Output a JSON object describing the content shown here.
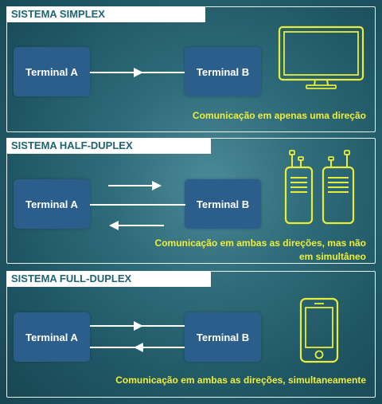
{
  "panels": {
    "simplex": {
      "title": "SISTEMA SIMPLEX",
      "terminal_a": "Terminal A",
      "terminal_b": "Terminal B",
      "caption": "Comunicação em apenas uma direção",
      "device_icon": "monitor-icon"
    },
    "half_duplex": {
      "title": "SISTEMA HALF-DUPLEX",
      "terminal_a": "Terminal A",
      "terminal_b": "Terminal B",
      "caption_line1": "Comunicação em ambas as direções, mas não",
      "caption_line2": "em simultâneo",
      "device_icon": "walkie-talkie-icon"
    },
    "full_duplex": {
      "title": "SISTEMA FULL-DUPLEX",
      "terminal_a": "Terminal A",
      "terminal_b": "Terminal B",
      "caption": "Comunicação em ambas as direções, simultaneamente",
      "device_icon": "smartphone-icon"
    }
  },
  "colors": {
    "background": "#1f5563",
    "terminal": "#2c5e8c",
    "accent_text": "#f0ee3a",
    "icon_stroke": "#e8ec3a",
    "title_text": "#1f6474"
  }
}
